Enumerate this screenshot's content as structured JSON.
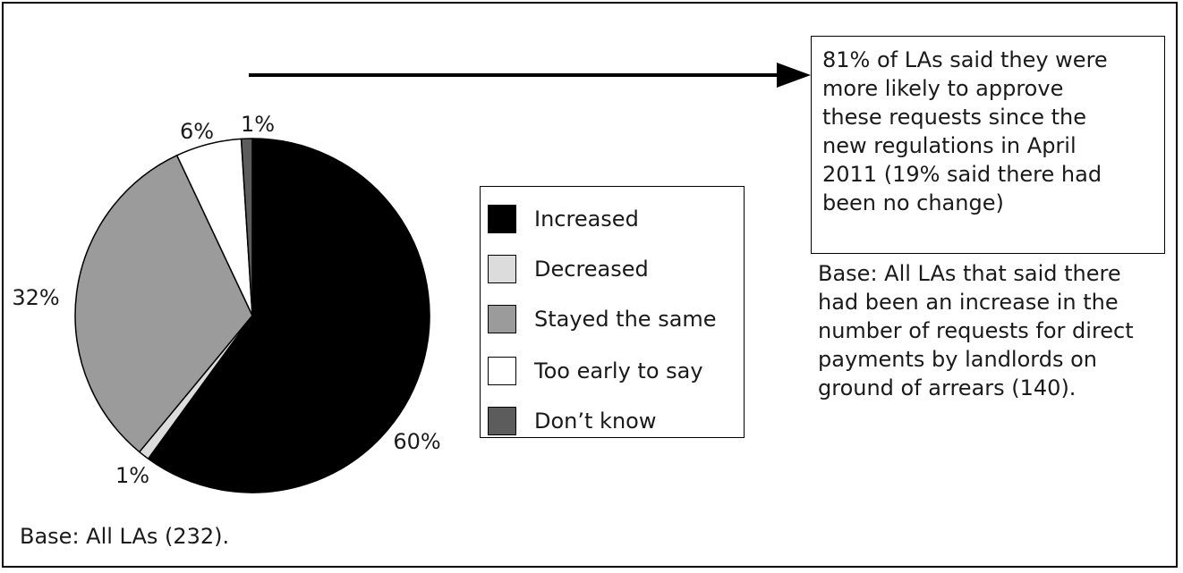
{
  "chart_data": {
    "type": "pie",
    "slices": [
      {
        "label": "Increased",
        "value": 60,
        "label_text": "60%",
        "color": "#000000"
      },
      {
        "label": "Decreased",
        "value": 1,
        "label_text": "1%",
        "color": "#dcdcdc"
      },
      {
        "label": "Stayed the same",
        "value": 32,
        "label_text": "32%",
        "color": "#9b9b9b"
      },
      {
        "label": "Too early to say",
        "value": 6,
        "label_text": "6%",
        "color": "#ffffff"
      },
      {
        "label": "Don’t know",
        "value": 1,
        "label_text": "1%",
        "color": "#5c5c5c"
      }
    ],
    "legend": [
      "Increased",
      "Decreased",
      "Stayed the same",
      "Too early to say",
      "Don’t know"
    ],
    "legend_position": "right"
  },
  "callout": {
    "lines": [
      "81% of LAs said they were",
      "more likely to approve",
      "these requests since the",
      "new regulations in April",
      "2011 (19% said there had",
      "been no change)"
    ]
  },
  "base_right": {
    "lines": [
      "Base: All LAs that said there",
      "had been an increase in the",
      "number of requests for direct",
      "payments by landlords on",
      "ground of arrears (140)."
    ]
  },
  "base_left": "Base: All LAs (232)."
}
